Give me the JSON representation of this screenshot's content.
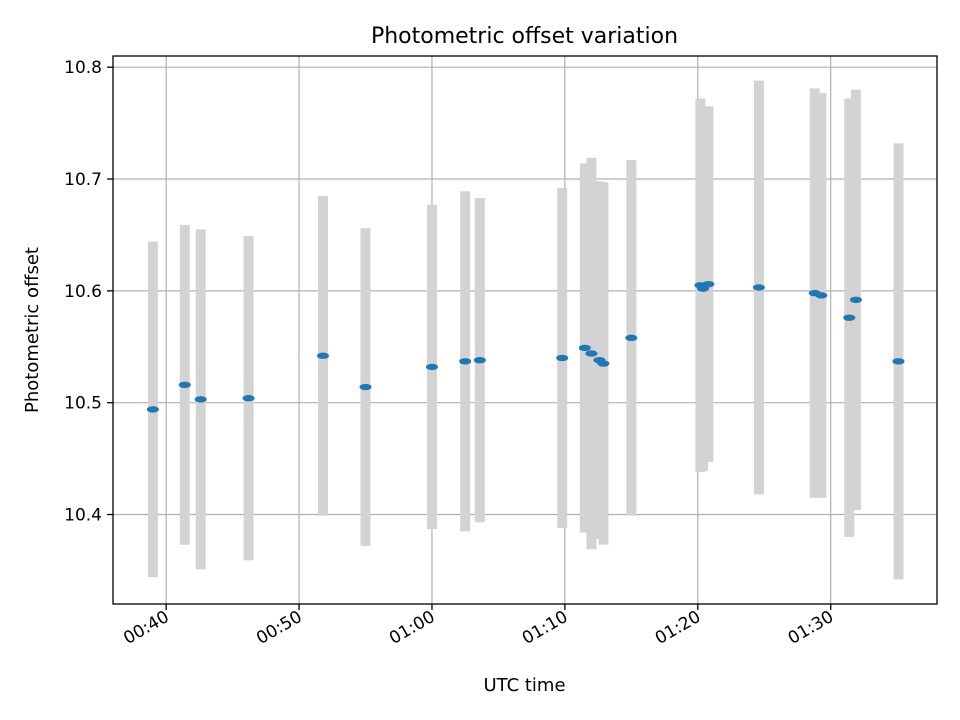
{
  "chart_data": {
    "type": "scatter",
    "title": "Photometric offset variation",
    "xlabel": "UTC time",
    "ylabel": "Photometric offset",
    "grid": true,
    "x_unit": "minutes",
    "xlim": [
      36,
      98
    ],
    "ylim": [
      10.32,
      10.81
    ],
    "xticks": [
      {
        "value": 40,
        "label": "00:40"
      },
      {
        "value": 50,
        "label": "00:50"
      },
      {
        "value": 60,
        "label": "01:00"
      },
      {
        "value": 70,
        "label": "01:10"
      },
      {
        "value": 80,
        "label": "01:20"
      },
      {
        "value": 90,
        "label": "01:30"
      }
    ],
    "yticks": [
      {
        "value": 10.4,
        "label": "10.4"
      },
      {
        "value": 10.5,
        "label": "10.5"
      },
      {
        "value": 10.6,
        "label": "10.6"
      },
      {
        "value": 10.7,
        "label": "10.7"
      },
      {
        "value": 10.8,
        "label": "10.8"
      }
    ],
    "point_color": "#1f77b4",
    "errorbar_color": "#d3d3d3",
    "points": [
      {
        "x": 39.0,
        "y": 10.494,
        "err": 0.15
      },
      {
        "x": 41.4,
        "y": 10.516,
        "err": 0.143
      },
      {
        "x": 42.6,
        "y": 10.503,
        "err": 0.152
      },
      {
        "x": 46.2,
        "y": 10.504,
        "err": 0.145
      },
      {
        "x": 51.8,
        "y": 10.542,
        "err": 0.143
      },
      {
        "x": 55.0,
        "y": 10.514,
        "err": 0.142
      },
      {
        "x": 60.0,
        "y": 10.532,
        "err": 0.145
      },
      {
        "x": 62.5,
        "y": 10.537,
        "err": 0.152
      },
      {
        "x": 63.6,
        "y": 10.538,
        "err": 0.145
      },
      {
        "x": 69.8,
        "y": 10.54,
        "err": 0.152
      },
      {
        "x": 71.5,
        "y": 10.549,
        "err": 0.165
      },
      {
        "x": 72.0,
        "y": 10.544,
        "err": 0.175
      },
      {
        "x": 72.6,
        "y": 10.538,
        "err": 0.16
      },
      {
        "x": 72.9,
        "y": 10.535,
        "err": 0.162
      },
      {
        "x": 75.0,
        "y": 10.558,
        "err": 0.159
      },
      {
        "x": 80.2,
        "y": 10.605,
        "err": 0.167
      },
      {
        "x": 80.4,
        "y": 10.602,
        "err": 0.163
      },
      {
        "x": 80.8,
        "y": 10.606,
        "err": 0.159
      },
      {
        "x": 84.6,
        "y": 10.603,
        "err": 0.185
      },
      {
        "x": 88.8,
        "y": 10.598,
        "err": 0.183
      },
      {
        "x": 89.3,
        "y": 10.596,
        "err": 0.181
      },
      {
        "x": 91.4,
        "y": 10.576,
        "err": 0.196
      },
      {
        "x": 91.9,
        "y": 10.592,
        "err": 0.188
      },
      {
        "x": 95.1,
        "y": 10.537,
        "err": 0.195
      }
    ]
  }
}
